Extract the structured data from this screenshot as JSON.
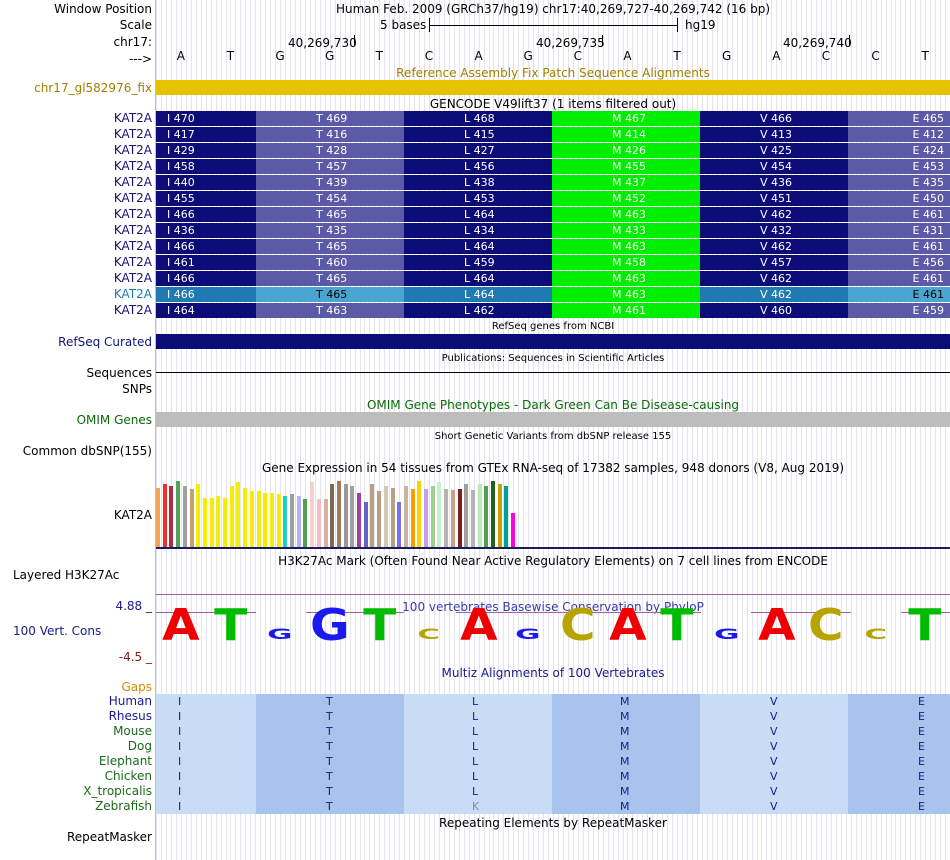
{
  "labels": {
    "window_position": "Window Position",
    "scale": "Scale",
    "chrom": "chr17:",
    "arrow": "--->",
    "fix_track": "chr17_gl582976_fix",
    "refseq": "RefSeq Curated",
    "sequences": "Sequences",
    "snps": "SNPs",
    "omim": "OMIM Genes",
    "dbsnp": "Common dbSNP(155)",
    "gtex_gene": "KAT2A",
    "h3k27ac": "Layered H3K27Ac",
    "cons_max": "4.88 _",
    "cons_label": "100 Vert. Cons",
    "cons_min": "-4.5 _",
    "gaps": "Gaps",
    "repeatmasker": "RepeatMasker"
  },
  "header": {
    "assembly": "Human Feb. 2009 (GRCh37/hg19)   chr17:40,269,727-40,269,742 (16 bp)",
    "scale_text": "5 bases",
    "scale_db": "hg19",
    "coord1": "40,269,730",
    "coord2": "40,269,735",
    "coord3": "40,269,740"
  },
  "bases": [
    "A",
    "T",
    "G",
    "G",
    "T",
    "C",
    "A",
    "G",
    "C",
    "A",
    "T",
    "G",
    "A",
    "C",
    "C",
    "T"
  ],
  "tracks": {
    "fix_title": "Reference Assembly Fix Patch Sequence Alignments",
    "gencode_title": "GENCODE V49lift37 (1 items filtered out)",
    "refseq_title": "RefSeq genes from NCBI",
    "pubs_title": "Publications: Sequences in Scientific Articles",
    "omim_title": "OMIM Gene Phenotypes - Dark Green Can Be Disease-causing",
    "dbsnp_title": "Short Genetic Variants from dbSNP release 155",
    "gtex_title": "Gene Expression in 54 tissues from GTEx RNA-seq of 17382 samples, 948 donors (V8, Aug 2019)",
    "h3k_title": "H3K27Ac Mark (Often Found Near Active Regulatory Elements) on 7 cell lines from ENCODE",
    "phylop_title": "100 vertebrates Basewise Conservation by PhyloP",
    "multiz_title": "Multiz Alignments of 100 Vertebrates",
    "repeat_title": "Repeating Elements by RepeatMasker"
  },
  "gencode_rows": [
    {
      "gene": "KAT2A",
      "I": "I 470",
      "T": "T 469",
      "L": "L 468",
      "M": "M 467",
      "V": "V 466",
      "E": "E 465"
    },
    {
      "gene": "KAT2A",
      "I": "I 417",
      "T": "T 416",
      "L": "L 415",
      "M": "M 414",
      "V": "V 413",
      "E": "E 412"
    },
    {
      "gene": "KAT2A",
      "I": "I 429",
      "T": "T 428",
      "L": "L 427",
      "M": "M 426",
      "V": "V 425",
      "E": "E 424"
    },
    {
      "gene": "KAT2A",
      "I": "I 458",
      "T": "T 457",
      "L": "L 456",
      "M": "M 455",
      "V": "V 454",
      "E": "E 453"
    },
    {
      "gene": "KAT2A",
      "I": "I 440",
      "T": "T 439",
      "L": "L 438",
      "M": "M 437",
      "V": "V 436",
      "E": "E 435"
    },
    {
      "gene": "KAT2A",
      "I": "I 455",
      "T": "T 454",
      "L": "L 453",
      "M": "M 452",
      "V": "V 451",
      "E": "E 450"
    },
    {
      "gene": "KAT2A",
      "I": "I 466",
      "T": "T 465",
      "L": "L 464",
      "M": "M 463",
      "V": "V 462",
      "E": "E 461"
    },
    {
      "gene": "KAT2A",
      "I": "I 436",
      "T": "T 435",
      "L": "L 434",
      "M": "M 433",
      "V": "V 432",
      "E": "E 431"
    },
    {
      "gene": "KAT2A",
      "I": "I 466",
      "T": "T 465",
      "L": "L 464",
      "M": "M 463",
      "V": "V 462",
      "E": "E 461"
    },
    {
      "gene": "KAT2A",
      "I": "I 461",
      "T": "T 460",
      "L": "L 459",
      "M": "M 458",
      "V": "V 457",
      "E": "E 456"
    },
    {
      "gene": "KAT2A",
      "I": "I 466",
      "T": "T 465",
      "L": "L 464",
      "M": "M 463",
      "V": "V 462",
      "E": "E 461"
    },
    {
      "gene": "KAT2A",
      "I": "I 466",
      "T": "T 465",
      "L": "L 464",
      "M": "M 463",
      "V": "V 462",
      "E": "E 461"
    },
    {
      "gene": "KAT2A",
      "I": "I 464",
      "T": "T 463",
      "L": "L 462",
      "M": "M 461",
      "V": "V 460",
      "E": "E 459"
    }
  ],
  "species": [
    {
      "name": "Human",
      "aa": [
        "I",
        "T",
        "L",
        "M",
        "V",
        "E"
      ]
    },
    {
      "name": "Rhesus",
      "aa": [
        "I",
        "T",
        "L",
        "M",
        "V",
        "E"
      ]
    },
    {
      "name": "Mouse",
      "aa": [
        "I",
        "T",
        "L",
        "M",
        "V",
        "E"
      ]
    },
    {
      "name": "Dog",
      "aa": [
        "I",
        "T",
        "L",
        "M",
        "V",
        "E"
      ]
    },
    {
      "name": "Elephant",
      "aa": [
        "I",
        "T",
        "L",
        "M",
        "V",
        "E"
      ]
    },
    {
      "name": "Chicken",
      "aa": [
        "I",
        "T",
        "L",
        "M",
        "V",
        "E"
      ]
    },
    {
      "name": "X_tropicalis",
      "aa": [
        "I",
        "T",
        "L",
        "M",
        "V",
        "E"
      ]
    },
    {
      "name": "Zebrafish",
      "aa": [
        "I",
        "T",
        "K",
        "M",
        "V",
        "E"
      ]
    }
  ],
  "gtex_values": [
    0.9,
    0.95,
    0.93,
    1.0,
    0.93,
    0.88,
    0.96,
    0.75,
    0.75,
    0.78,
    0.75,
    0.92,
    0.98,
    0.9,
    0.85,
    0.85,
    0.82,
    0.82,
    0.8,
    0.78,
    0.8,
    0.78,
    0.72,
    0.98,
    0.72,
    0.72,
    0.96,
    1.0,
    0.95,
    0.92,
    0.82,
    0.68,
    0.95,
    0.85,
    0.92,
    0.9,
    0.68,
    0.92,
    0.88,
    1.0,
    0.88,
    0.92,
    0.98,
    0.88,
    0.86,
    0.88,
    0.95,
    0.86,
    0.95,
    0.92,
    1.0,
    0.95,
    0.92,
    0.52
  ],
  "gtex_colors": [
    "#f5a352",
    "#f0302a",
    "#a7323d",
    "#50a35a",
    "#a0a0a0",
    "#c8a06e",
    "#f2ee0a",
    "#f2ee0a",
    "#f2ee0a",
    "#f2ee0a",
    "#f2ee0a",
    "#f2ee0a",
    "#f2ee0a",
    "#f2ee0a",
    "#f2ee0a",
    "#f2ee0a",
    "#f2ee0a",
    "#f2ee0a",
    "#f2ee0a",
    "#1fcccc",
    "#9e9e9e",
    "#b4b4f0",
    "#50a050",
    "#f5d0d0",
    "#f5bbc8",
    "#d2b4a0",
    "#7a6a52",
    "#a07a5e",
    "#9a9a9a",
    "#a0a0a0",
    "#a040a0",
    "#6464c8",
    "#b8a084",
    "#b8a084",
    "#d2c8b4",
    "#b8a084",
    "#7870e8",
    "#c8b4a0",
    "#f5a000",
    "#f5d700",
    "#c0a0f0",
    "#a0d090",
    "#c8f0c8",
    "#b4b4b4",
    "#c8a08c",
    "#7c2020",
    "#a0a0a0",
    "#b4b4b4",
    "#b4f0b4",
    "#50a050",
    "#206020",
    "#c8a000",
    "#00a0a0",
    "#ff00e0"
  ]
}
